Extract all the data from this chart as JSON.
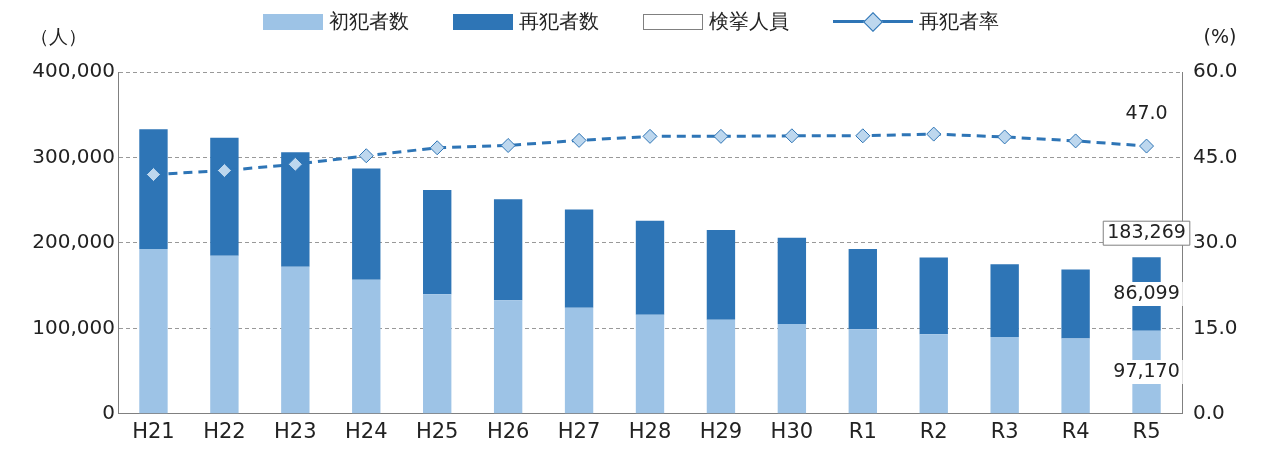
{
  "chart_data": {
    "type": "bar",
    "stacked": true,
    "ylabel": "（人）",
    "y2label": "(%)",
    "categories": [
      "H21",
      "H22",
      "H23",
      "H24",
      "H25",
      "H26",
      "H27",
      "H28",
      "H29",
      "H30",
      "R1",
      "R2",
      "R3",
      "R4",
      "R5"
    ],
    "series": [
      {
        "name": "初犯者数",
        "color": "#9dc3e6",
        "values": [
          193000,
          185000,
          172000,
          157000,
          140000,
          133000,
          124000,
          116000,
          110000,
          105000,
          99000,
          93000,
          90000,
          88000,
          97170
        ],
        "value_labels": [
          null,
          null,
          null,
          null,
          null,
          null,
          null,
          null,
          null,
          null,
          null,
          null,
          null,
          null,
          "97,170"
        ]
      },
      {
        "name": "再犯者数",
        "color": "#2e75b6",
        "values": [
          140000,
          138000,
          134000,
          130000,
          122000,
          118000,
          115000,
          110000,
          105000,
          101000,
          94000,
          90000,
          85000,
          81000,
          86099
        ],
        "value_labels": [
          null,
          null,
          null,
          null,
          null,
          null,
          null,
          null,
          null,
          null,
          null,
          null,
          null,
          null,
          "86,099"
        ]
      },
      {
        "name": "再犯者率",
        "type": "line",
        "axis": "y2",
        "color": "#2e75b6",
        "marker": "diamond",
        "line_style": "dashed",
        "values": [
          42.0,
          42.7,
          43.8,
          45.3,
          46.7,
          47.1,
          48.0,
          48.7,
          48.7,
          48.8,
          48.8,
          49.1,
          48.6,
          47.9,
          47.0
        ],
        "value_labels": [
          null,
          null,
          null,
          null,
          null,
          null,
          null,
          null,
          null,
          null,
          null,
          null,
          null,
          null,
          "47.0"
        ]
      }
    ],
    "ylim": [
      0,
      400000
    ],
    "yticks": [
      0,
      {
        "value": 100000,
        "label": "100,000"
      },
      {
        "value": 200000,
        "label": "200,000"
      },
      {
        "value": 300000,
        "label": "300,000"
      },
      {
        "value": 400000,
        "label": "400,000"
      }
    ],
    "y2lim": [
      0,
      60
    ],
    "y2ticks": [
      {
        "value": 0,
        "label": "0.0"
      },
      {
        "value": 15,
        "label": "15.0"
      },
      {
        "value": 30,
        "label": "30.0"
      },
      {
        "value": 45,
        "label": "45.0"
      },
      {
        "value": 60,
        "label": "60.0"
      }
    ],
    "totals": [
      null,
      null,
      null,
      null,
      null,
      null,
      null,
      null,
      null,
      null,
      null,
      null,
      null,
      null,
      "183,269"
    ],
    "annotations": [
      "検挙人員"
    ],
    "grid": "y",
    "legend": "top"
  }
}
